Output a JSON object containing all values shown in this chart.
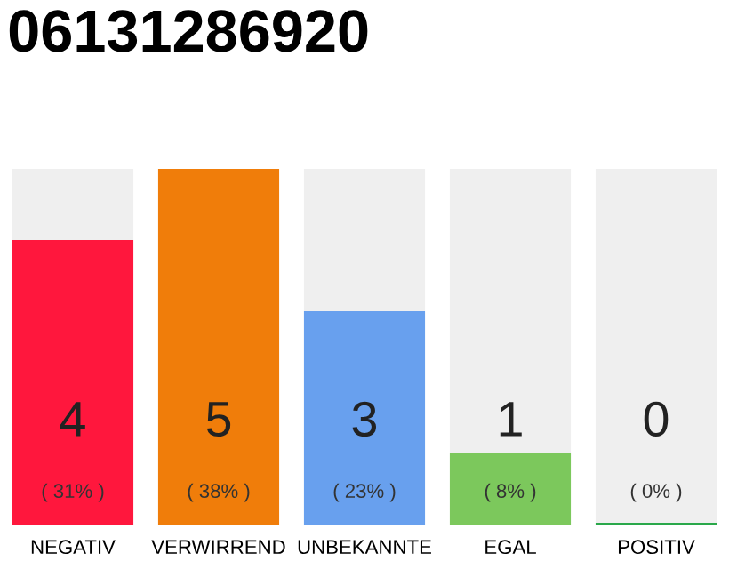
{
  "chart_data": {
    "type": "bar",
    "title": "06131286920",
    "categories": [
      "NEGATIV",
      "VERWIRREND",
      "UNBEKANNTE",
      "EGAL",
      "POSITIV"
    ],
    "values": [
      4,
      5,
      3,
      1,
      0
    ],
    "colors": [
      "#ff173d",
      "#f07d0a",
      "#68a0ee",
      "#7cc85c",
      "#2aa84a"
    ],
    "value_labels": [
      "4",
      "5",
      "3",
      "1",
      "0"
    ],
    "annotations": [
      "( 31% )",
      "( 38% )",
      "( 23% )",
      "( 8% )",
      "( 0% )"
    ],
    "grid": false,
    "legend": false
  }
}
